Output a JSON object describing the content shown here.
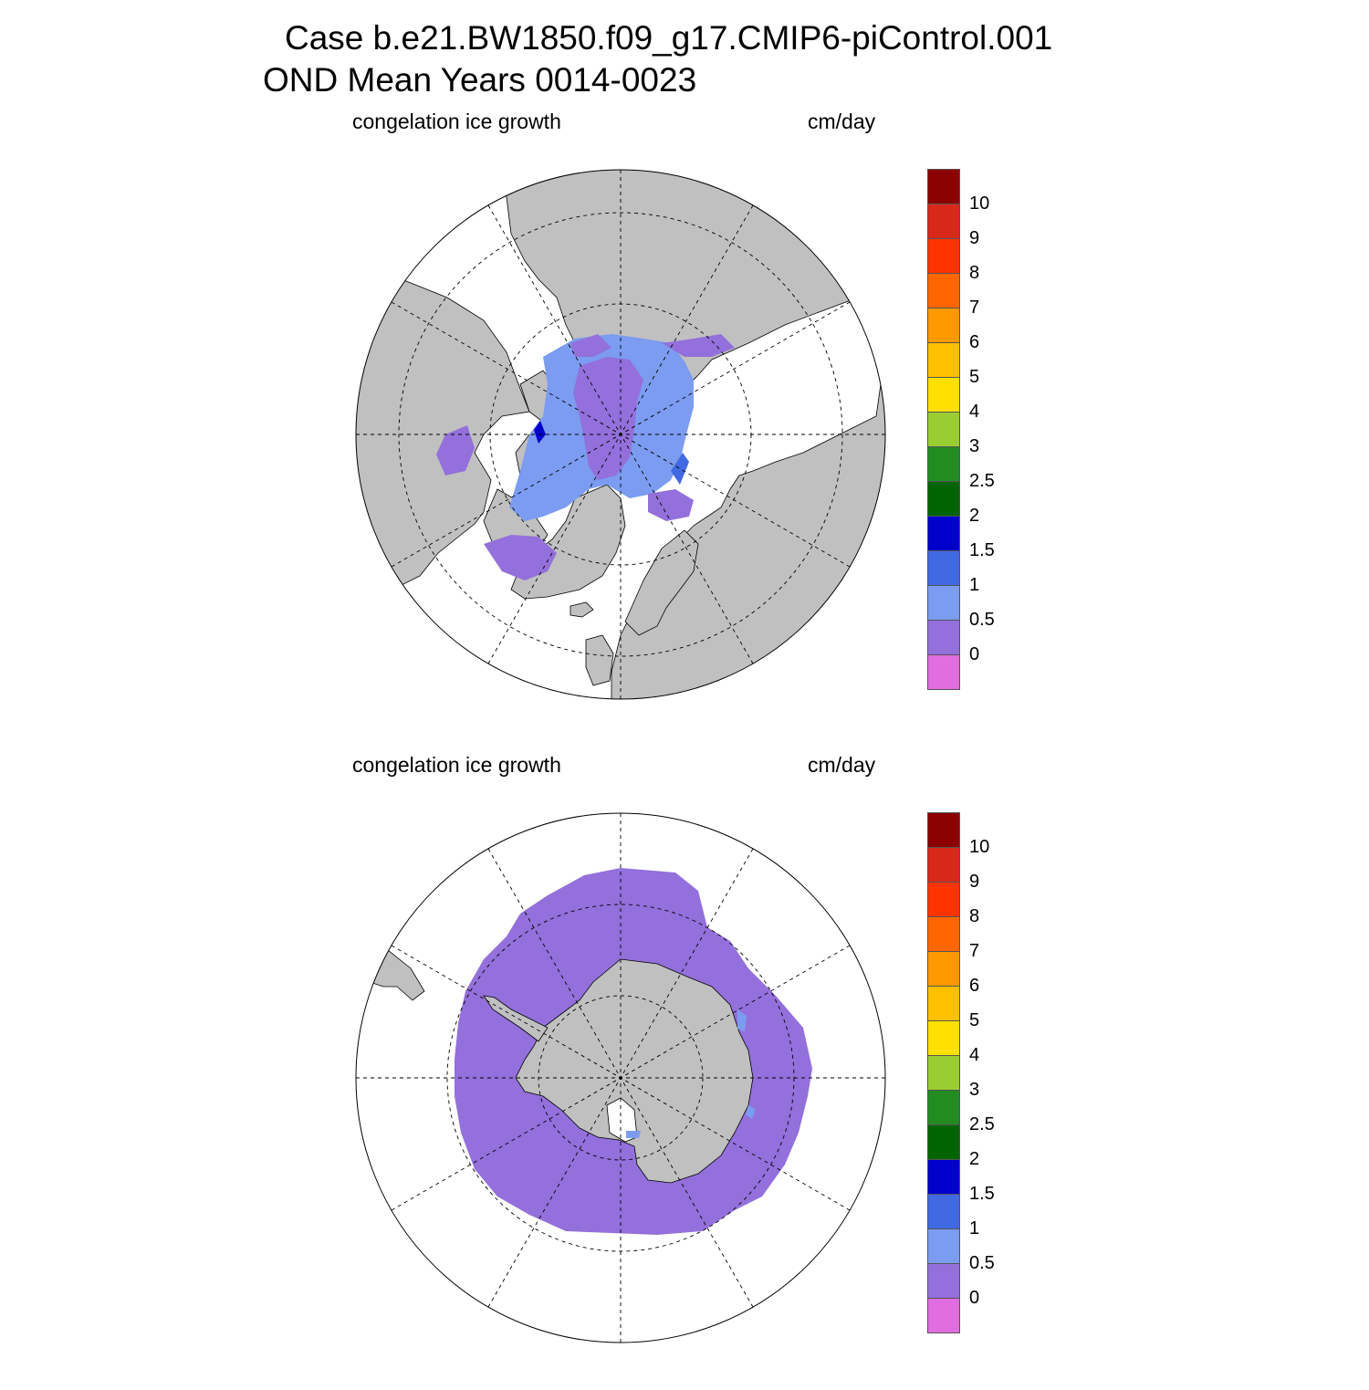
{
  "title": {
    "line1": "Case b.e21.BW1850.f09_g17.CMIP6-piControl.001",
    "line2": "OND Mean   Years 0014-0023"
  },
  "panels": [
    {
      "id": "north",
      "variable": "congelation ice growth",
      "units": "cm/day",
      "hemisphere": "Arctic"
    },
    {
      "id": "south",
      "variable": "congelation ice growth",
      "units": "cm/day",
      "hemisphere": "Antarctic"
    }
  ],
  "colorbar": {
    "levels": [
      "0",
      "0.5",
      "1",
      "1.5",
      "2",
      "2.5",
      "3",
      "4",
      "5",
      "6",
      "7",
      "8",
      "9",
      "10"
    ],
    "colors": [
      "#e06ee0",
      "#9370db",
      "#7b9cf0",
      "#4169e1",
      "#0000cd",
      "#006400",
      "#228b22",
      "#9acd32",
      "#ffe000",
      "#ffc000",
      "#ff9900",
      "#ff6600",
      "#ff3300",
      "#d8281a",
      "#8b0000"
    ]
  },
  "map_colors": {
    "land": "#c0c0c0",
    "ocean": "#ffffff",
    "ice_low": "#9370db",
    "ice_mid": "#7b9cf0",
    "ice_high": "#4169e1",
    "ice_max": "#0000cd"
  },
  "chart_data": [
    {
      "type": "heatmap",
      "title": "congelation ice growth",
      "units": "cm/day",
      "region": "Northern Hemisphere polar stereographic",
      "bins": [
        "<0",
        "0-0.5",
        "0.5-1",
        "1-1.5",
        "1.5-2",
        "2-2.5",
        "2.5-3",
        "3-4",
        "4-5",
        "5-6",
        "6-7",
        "7-8",
        "8-9",
        "9-10",
        ">10"
      ],
      "observed_bins": [
        "0-0.5",
        "0.5-1",
        "1-1.5",
        "1.5-2"
      ]
    },
    {
      "type": "heatmap",
      "title": "congelation ice growth",
      "units": "cm/day",
      "region": "Southern Hemisphere polar stereographic",
      "bins": [
        "<0",
        "0-0.5",
        "0.5-1",
        "1-1.5",
        "1.5-2",
        "2-2.5",
        "2.5-3",
        "3-4",
        "4-5",
        "5-6",
        "6-7",
        "7-8",
        "8-9",
        "9-10",
        ">10"
      ],
      "observed_bins": [
        "0-0.5",
        "0.5-1"
      ]
    }
  ]
}
